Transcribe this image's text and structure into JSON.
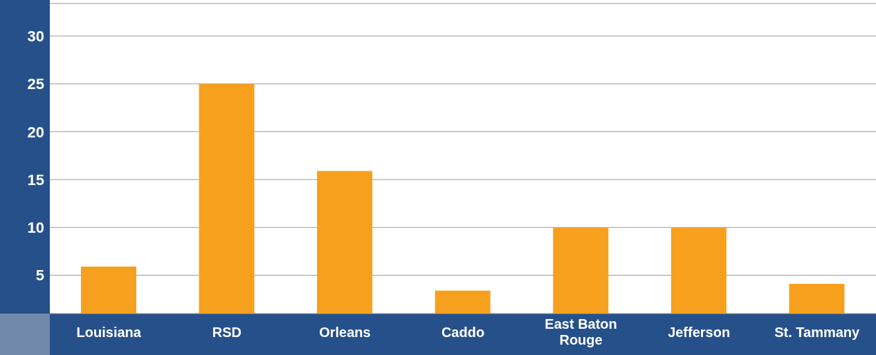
{
  "chart_data": {
    "type": "bar",
    "categories": [
      "Louisiana",
      "RSD",
      "Orleans",
      "Caddo",
      "East Baton Rouge",
      "Jefferson",
      "St. Tammany"
    ],
    "values": [
      5.9,
      25,
      15.9,
      3.4,
      10,
      10,
      4.1
    ],
    "color": "#f7a01e",
    "ylim": [
      1,
      33.4
    ],
    "yticks": [
      5,
      10,
      15,
      20,
      25,
      30
    ],
    "grid": "y",
    "legend": false
  }
}
